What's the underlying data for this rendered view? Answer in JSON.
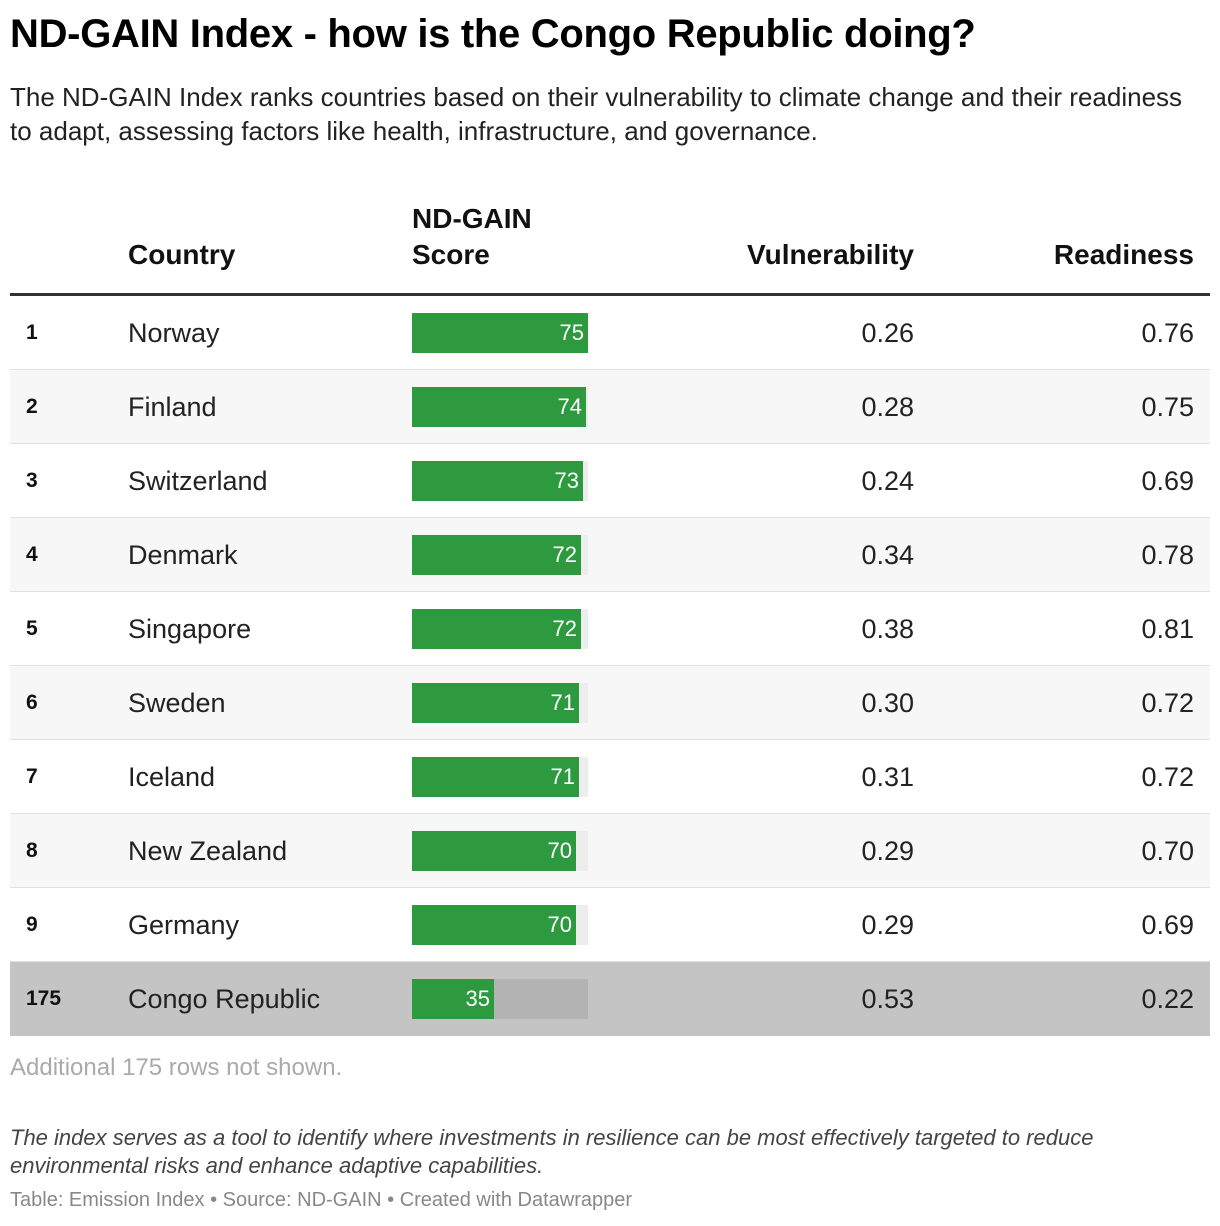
{
  "header": {
    "title": "ND-GAIN Index - how is the Congo Republic doing?",
    "subtitle": "The ND-GAIN Index ranks countries based on their vulnerability to climate change and their readiness to adapt, assessing factors like health, infrastructure, and governance."
  },
  "table": {
    "columns": {
      "rank": "",
      "country": "Country",
      "score": "ND-GAIN Score",
      "vulnerability": "Vulnerability",
      "readiness": "Readiness"
    },
    "rows": [
      {
        "rank": "1",
        "country": "Norway",
        "score": 75,
        "vulnerability": "0.26",
        "readiness": "0.76"
      },
      {
        "rank": "2",
        "country": "Finland",
        "score": 74,
        "vulnerability": "0.28",
        "readiness": "0.75"
      },
      {
        "rank": "3",
        "country": "Switzerland",
        "score": 73,
        "vulnerability": "0.24",
        "readiness": "0.69"
      },
      {
        "rank": "4",
        "country": "Denmark",
        "score": 72,
        "vulnerability": "0.34",
        "readiness": "0.78"
      },
      {
        "rank": "5",
        "country": "Singapore",
        "score": 72,
        "vulnerability": "0.38",
        "readiness": "0.81"
      },
      {
        "rank": "6",
        "country": "Sweden",
        "score": 71,
        "vulnerability": "0.30",
        "readiness": "0.72"
      },
      {
        "rank": "7",
        "country": "Iceland",
        "score": 71,
        "vulnerability": "0.31",
        "readiness": "0.72"
      },
      {
        "rank": "8",
        "country": "New Zealand",
        "score": 70,
        "vulnerability": "0.29",
        "readiness": "0.70"
      },
      {
        "rank": "9",
        "country": "Germany",
        "score": 70,
        "vulnerability": "0.29",
        "readiness": "0.69"
      },
      {
        "rank": "175",
        "country": "Congo Republic",
        "score": 35,
        "vulnerability": "0.53",
        "readiness": "0.22",
        "highlight": true
      }
    ],
    "more_rows_note": "Additional 175 rows not shown."
  },
  "notes": "The index serves as a tool to identify where investments in resilience can be most effectively targeted to reduce environmental risks and enhance adaptive capabilities.",
  "footer": "Table: Emission Index • Source: ND-GAIN • Created with Datawrapper",
  "colors": {
    "bar": "#2e9a40",
    "highlight_row": "#c4c4c4"
  },
  "chart_data": {
    "type": "table",
    "title": "ND-GAIN Index - how is the Congo Republic doing?",
    "columns": [
      "",
      "Country",
      "ND-GAIN Score",
      "Vulnerability",
      "Readiness"
    ],
    "score_scale_max": 75,
    "series": [
      {
        "name": "ND-GAIN Score",
        "values": [
          75,
          74,
          73,
          72,
          72,
          71,
          71,
          70,
          70,
          35
        ]
      },
      {
        "name": "Vulnerability",
        "values": [
          0.26,
          0.28,
          0.24,
          0.34,
          0.38,
          0.3,
          0.31,
          0.29,
          0.29,
          0.53
        ]
      },
      {
        "name": "Readiness",
        "values": [
          0.76,
          0.75,
          0.69,
          0.78,
          0.81,
          0.72,
          0.72,
          0.7,
          0.69,
          0.22
        ]
      }
    ],
    "categories": [
      "Norway",
      "Finland",
      "Switzerland",
      "Denmark",
      "Singapore",
      "Sweden",
      "Iceland",
      "New Zealand",
      "Germany",
      "Congo Republic"
    ]
  }
}
